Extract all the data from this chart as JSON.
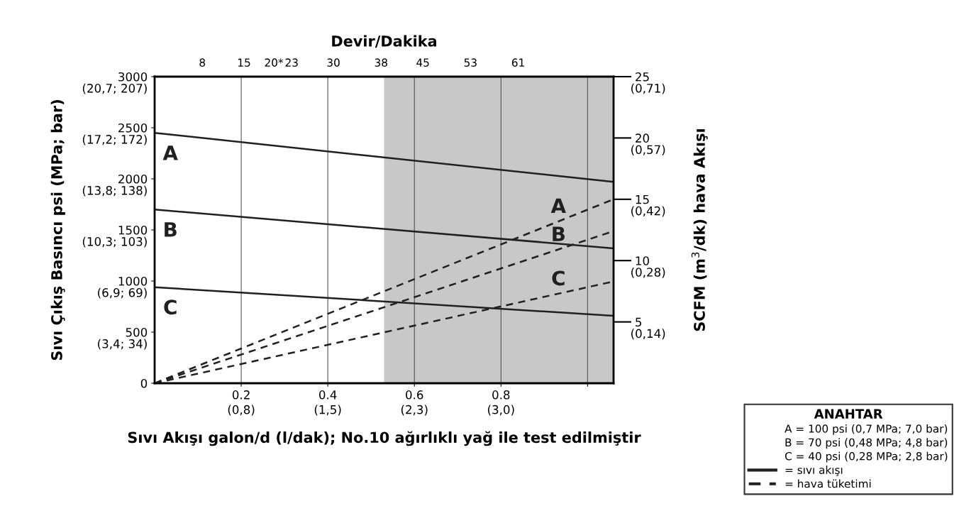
{
  "chart_data": {
    "type": "line",
    "x2label": "Devir/Dakika",
    "xlabel": "Sıvı Akışı galon/d (l/dak); No.10 ağırlıklı yağ ile test edilmiştir",
    "ylabel": "Sıvı Çıkış Basıncı psi (MPa; bar)",
    "y2label": "SCFM (m$^{3}$/dk) hava Akışı",
    "legend_title": "ANAHTAR",
    "legend": "bottom right",
    "grid": "x",
    "marker": "none",
    "xlim": [
      0,
      1.06
    ],
    "xticks": [
      0.2,
      0.4,
      0.6,
      0.8,
      {
        "value": 1.0,
        "label": null
      }
    ],
    "x2lim": [
      0,
      77
    ],
    "x2ticks": [
      8,
      15,
      {
        "value": 20,
        "label": "20*"
      },
      23,
      30,
      38,
      45,
      53,
      61
    ],
    "ylim": [
      0,
      3000
    ],
    "yticks": [
      0,
      500,
      1000,
      1500,
      2000,
      2500,
      3000
    ],
    "y2lim": [
      0,
      25
    ],
    "y2ticks": [
      5,
      10,
      15,
      20,
      25
    ],
    "x": [
      0,
      1.06
    ],
    "bands": [
      {
        "axis": "x",
        "from": 0.53,
        "to": 1.06,
        "color": "#c8c8c8"
      }
    ],
    "series": [
      {
        "name": "A",
        "color": "#231f20",
        "line_style": "solid",
        "values": [
          2450,
          1970
        ]
      },
      {
        "name": "B",
        "color": "#231f20",
        "line_style": "solid",
        "values": [
          1700,
          1320
        ]
      },
      {
        "name": "C",
        "color": "#231f20",
        "line_style": "solid",
        "values": [
          940,
          660
        ]
      },
      {
        "name": "A",
        "color": "#231f20",
        "line_style": "dashed",
        "axis": "y2",
        "values": [
          0,
          15
        ]
      },
      {
        "name": "B",
        "color": "#231f20",
        "line_style": "dashed",
        "axis": "y2",
        "values": [
          0,
          12.4
        ]
      },
      {
        "name": "C",
        "color": "#231f20",
        "line_style": "dashed",
        "axis": "y2",
        "values": [
          0,
          8.3
        ]
      }
    ],
    "annotations": [
      "(3,4; 34)",
      "(6,9; 69)",
      "(10,3; 103)",
      "(13,8; 138)",
      "(17,2; 172)",
      "(20,7; 207)",
      "(0,14)",
      "(0,28)",
      "(0,42)",
      "(0,57)",
      "(0,71)",
      "(0,8)",
      "(1,5)",
      "(2,3)",
      "(3,0)",
      "A = 100 psi (0,7 MPa; 7,0 bar)",
      "B = 70 psi (0,48 MPa; 4,8 bar)",
      "C = 40 psi (0,28 MPa; 2,8 bar)",
      "= sıvı akışı",
      "= hava tüketimi"
    ]
  }
}
